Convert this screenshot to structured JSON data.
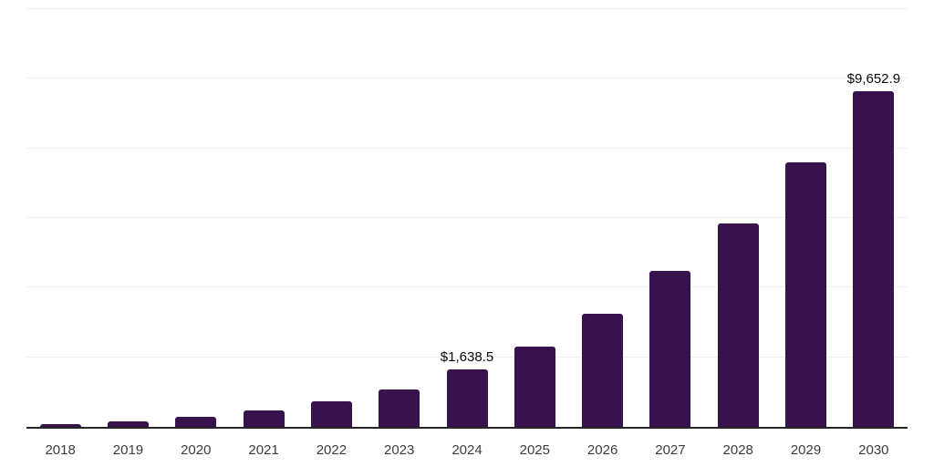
{
  "chart_data": {
    "type": "bar",
    "title": "",
    "xlabel": "",
    "ylabel": "",
    "categories": [
      "2018",
      "2019",
      "2020",
      "2021",
      "2022",
      "2023",
      "2024",
      "2025",
      "2026",
      "2027",
      "2028",
      "2029",
      "2030"
    ],
    "values": [
      78,
      155,
      293,
      484,
      743,
      1070,
      1638.5,
      2305,
      3240,
      4480,
      5855,
      7590,
      9652.9
    ],
    "value_labels": [
      "",
      "",
      "",
      "",
      "",
      "",
      "$1,638.5",
      "",
      "",
      "",
      "",
      "",
      "$9,652.9"
    ],
    "ylim": [
      0,
      12000
    ],
    "gridline_step": 2000,
    "grid": true,
    "legend": false,
    "colors": {
      "bar": "#38124d",
      "axis": "#262626",
      "gridline": "#f0f0f1",
      "x_label": "#3d3d3d",
      "value_label": "#0a0a0a",
      "background": "#ffffff"
    }
  }
}
